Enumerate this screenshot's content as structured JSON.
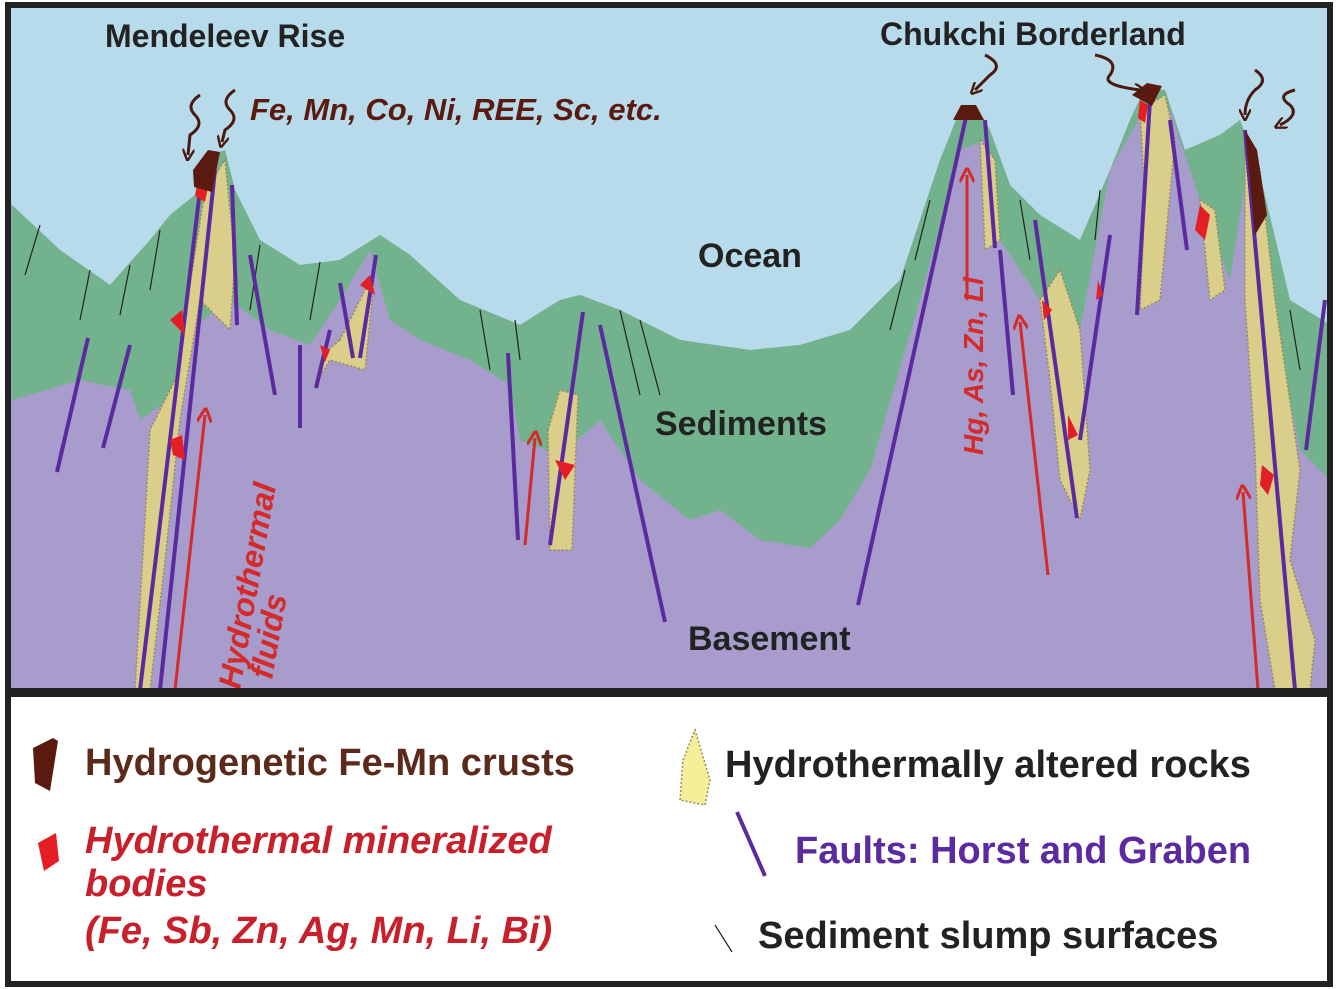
{
  "diagram": {
    "labels": {
      "mendeleev": "Mendeleev Rise",
      "chukchi": "Chukchi Borderland",
      "elements": "Fe, Mn, Co, Ni, REE, Sc, etc.",
      "ocean": "Ocean",
      "sediments": "Sediments",
      "basement": "Basement",
      "hg": "Hg, As, Zn, Li",
      "fluids": [
        "Hydrothermal",
        "fluids"
      ]
    },
    "legend": {
      "crusts": "Hydrogenetic Fe-Mn crusts",
      "bodies": [
        "Hydrothermal mineralized",
        "bodies",
        "(Fe, Sb, Zn, Ag, Mn, Li, Bi)"
      ],
      "altered": "Hydrothermally altered rocks",
      "faults": "Faults: Horst and Graben",
      "slump": "Sediment slump surfaces"
    }
  }
}
